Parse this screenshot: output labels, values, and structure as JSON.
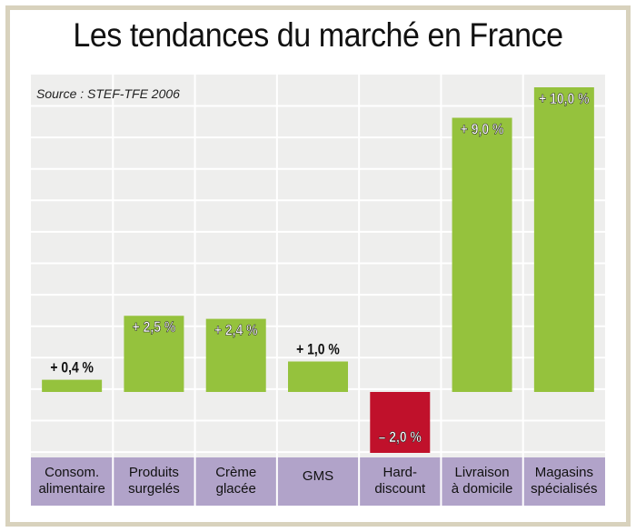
{
  "title": "Les tendances du marché en France",
  "source": "Source : STEF-TFE 2006",
  "colors": {
    "positive": "#95c23d",
    "negative": "#c0112b",
    "category_band": "#b1a3c9",
    "plot_bg": "#eeeeed",
    "frame": "#d8d2bd"
  },
  "chart_data": {
    "type": "bar",
    "title": "Les tendances du marché en France",
    "categories": [
      [
        "Consom.",
        "alimentaire"
      ],
      [
        "Produits",
        "surgelés"
      ],
      [
        "Crème",
        "glacée"
      ],
      [
        "GMS"
      ],
      [
        "Hard-",
        "discount"
      ],
      [
        "Livraison",
        "à domicile"
      ],
      [
        "Magasins",
        "spécialisés"
      ]
    ],
    "values": [
      0.4,
      2.5,
      2.4,
      1.0,
      -2.0,
      9.0,
      10.0
    ],
    "labels": [
      "+ 0,4 %",
      "+ 2,5 %",
      "+ 2,4 %",
      "+ 1,0 %",
      "– 2,0 %",
      "+ 9,0 %",
      "+ 10,0 %"
    ],
    "ylim": [
      -2,
      10
    ],
    "xlabel": "",
    "ylabel": "",
    "grid": true
  }
}
